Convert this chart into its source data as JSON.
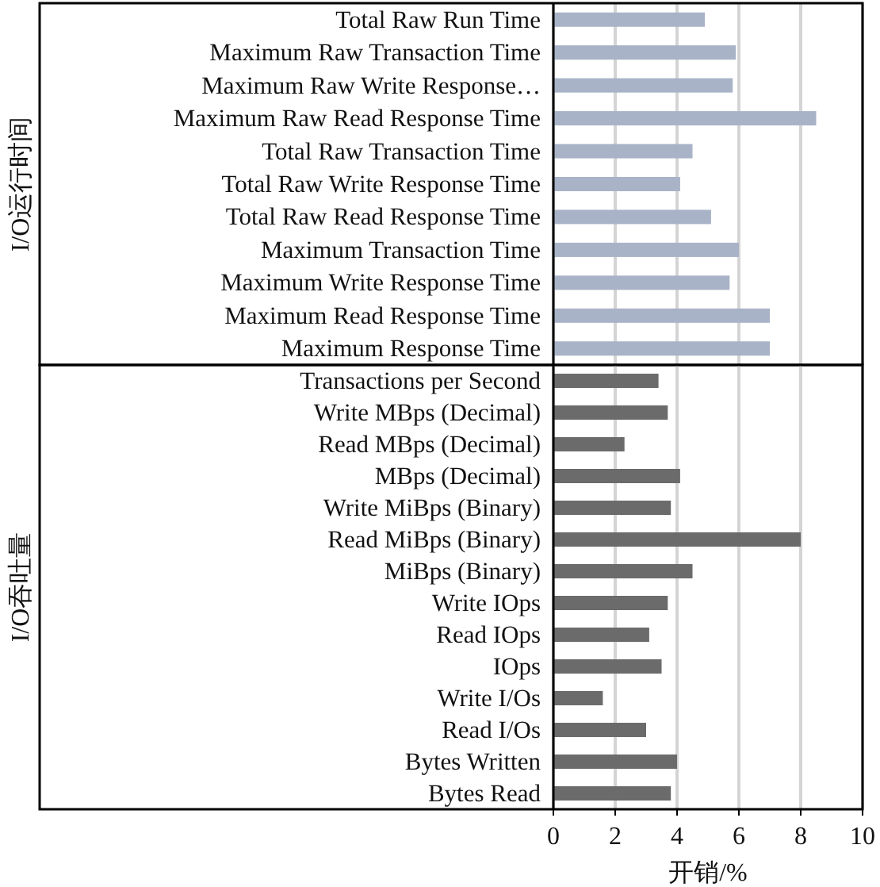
{
  "chart_data": [
    {
      "type": "bar",
      "orientation": "horizontal",
      "ylabel": "I/O运行时间",
      "categories": [
        "Total Raw Run Time",
        "Maximum Raw Transaction Time",
        "Maximum Raw Write Response…",
        "Maximum Raw Read Response Time",
        "Total Raw Transaction Time",
        "Total Raw Write Response Time",
        "Total Raw Read Response Time",
        "Maximum Transaction Time",
        "Maximum Write Response Time",
        "Maximum Read Response Time",
        "Maximum Response Time"
      ],
      "values": [
        4.9,
        5.9,
        5.8,
        8.5,
        4.5,
        4.1,
        5.1,
        6.0,
        5.7,
        7.0,
        7.0
      ],
      "color": "#a8b3c7",
      "xlim": [
        0,
        10
      ],
      "xticks": [
        0,
        2,
        4,
        6,
        8,
        10
      ],
      "grid": "x",
      "tick_labels": "y"
    },
    {
      "type": "bar",
      "orientation": "horizontal",
      "ylabel": "I/O吞吐量",
      "xlabel": "开销/%",
      "categories": [
        "Transactions per Second",
        "Write MBps (Decimal)",
        "Read MBps (Decimal)",
        "MBps (Decimal)",
        "Write MiBps (Binary)",
        "Read MiBps (Binary)",
        "MiBps (Binary)",
        "Write IOps",
        "Read IOps",
        "IOps",
        "Write I/Os",
        "Read I/Os",
        "Bytes Written",
        "Bytes Read"
      ],
      "values": [
        3.4,
        3.7,
        2.3,
        4.1,
        3.8,
        8.0,
        4.5,
        3.7,
        3.1,
        3.5,
        1.6,
        3.0,
        4.0,
        3.8
      ],
      "color": "#6b6b6b",
      "xlim": [
        0,
        10
      ],
      "xticks": [
        0,
        2,
        4,
        6,
        8,
        10
      ],
      "grid": "x"
    }
  ]
}
